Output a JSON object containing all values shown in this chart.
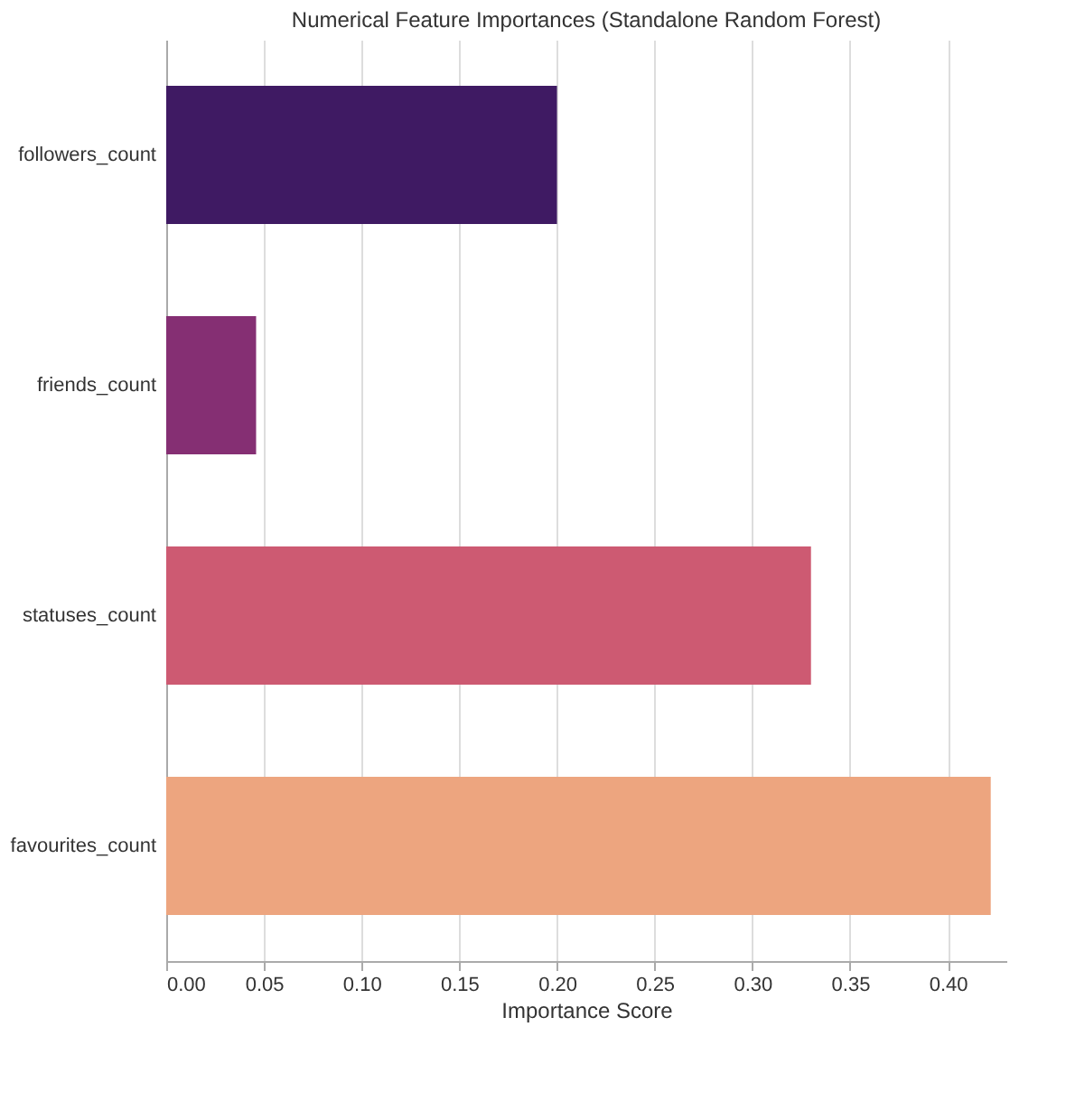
{
  "chart_data": {
    "type": "bar",
    "orientation": "horizontal",
    "title": "Numerical Feature Importances (Standalone Random Forest)",
    "xlabel": "Importance Score",
    "categories": [
      "followers_count",
      "friends_count",
      "statuses_count",
      "favourites_count"
    ],
    "values": [
      0.2,
      0.046,
      0.33,
      0.422
    ],
    "colors": [
      "#3f1a63",
      "#852f73",
      "#cd5a72",
      "#eda57f"
    ],
    "xlim": [
      0,
      0.43
    ],
    "xticks": [
      {
        "value": 0,
        "label": "0.00"
      },
      {
        "value": 0.05,
        "label": "0.05"
      },
      {
        "value": 0.1,
        "label": "0.10"
      },
      {
        "value": 0.15,
        "label": "0.15"
      },
      {
        "value": 0.2,
        "label": "0.20"
      },
      {
        "value": 0.25,
        "label": "0.25"
      },
      {
        "value": 0.3,
        "label": "0.30"
      },
      {
        "value": 0.35,
        "label": "0.35"
      },
      {
        "value": 0.4,
        "label": "0.40"
      }
    ],
    "grid": "x"
  }
}
